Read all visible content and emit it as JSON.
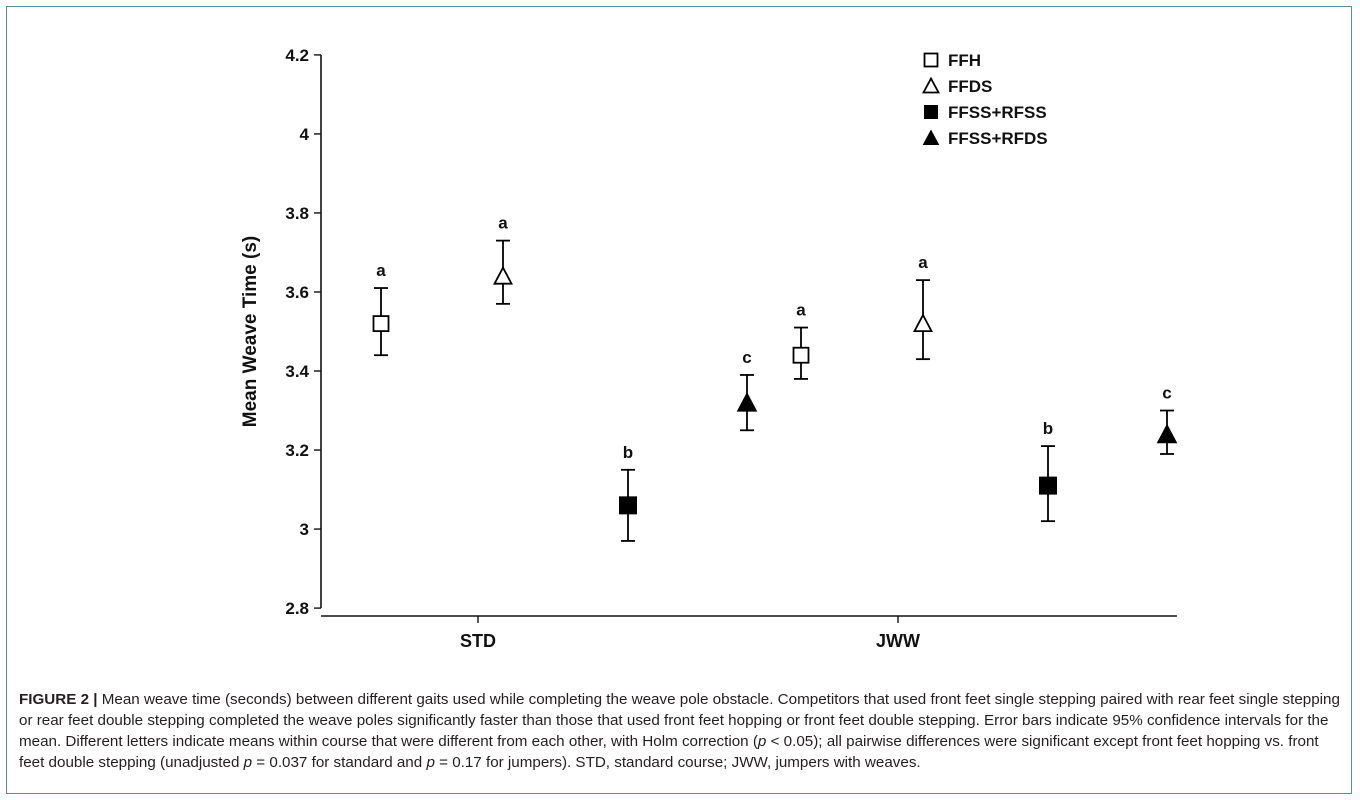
{
  "chart_data": {
    "type": "scatter",
    "ylabel": "Mean Weave Time (s)",
    "xlabel": "",
    "ylim": [
      2.78,
      4.22
    ],
    "yticks": [
      "2.8",
      "3",
      "3.2",
      "3.4",
      "3.6",
      "3.8",
      "4",
      "4.2"
    ],
    "ytick_values": [
      2.8,
      3.0,
      3.2,
      3.4,
      3.6,
      3.8,
      4.0,
      4.2
    ],
    "categories": [
      "STD",
      "JWW"
    ],
    "legend_position": "top-right",
    "grid": false,
    "series": [
      {
        "name": "FFH",
        "marker": "square-open",
        "values": [
          3.52,
          3.44
        ],
        "ci_low": [
          3.44,
          3.38
        ],
        "ci_high": [
          3.61,
          3.51
        ],
        "letters": [
          "a",
          "a"
        ]
      },
      {
        "name": "FFDS",
        "marker": "triangle-open",
        "values": [
          3.64,
          3.52
        ],
        "ci_low": [
          3.57,
          3.43
        ],
        "ci_high": [
          3.73,
          3.63
        ],
        "letters": [
          "a",
          "a"
        ]
      },
      {
        "name": "FFSS+RFSS",
        "marker": "square-filled",
        "values": [
          3.06,
          3.11
        ],
        "ci_low": [
          2.97,
          3.02
        ],
        "ci_high": [
          3.15,
          3.21
        ],
        "letters": [
          "b",
          "b"
        ]
      },
      {
        "name": "FFSS+RFDS",
        "marker": "triangle-filled",
        "values": [
          3.32,
          3.24
        ],
        "ci_low": [
          3.25,
          3.19
        ],
        "ci_high": [
          3.39,
          3.3
        ],
        "letters": [
          "c",
          "c"
        ]
      }
    ]
  },
  "caption": {
    "label": "FIGURE 2 |",
    "t1": " Mean weave time (seconds) between different gaits used while completing the weave pole obstacle. Competitors that used front feet single stepping paired with rear feet single stepping or rear feet double stepping completed the weave poles significantly faster than those that used front feet hopping or front feet double stepping. Error bars indicate 95% confidence intervals for the mean. Different letters indicate means within course that were different from each other, with Holm correction (",
    "p1": "p",
    "t2": " < 0.05); all pairwise differences were significant except front feet hopping vs. front feet double stepping (unadjusted ",
    "p2": "p",
    "t3": " = 0.037 for standard and ",
    "p3": "p",
    "t4": " = 0.17 for jumpers). STD, standard course; JWW, jumpers with weaves."
  }
}
